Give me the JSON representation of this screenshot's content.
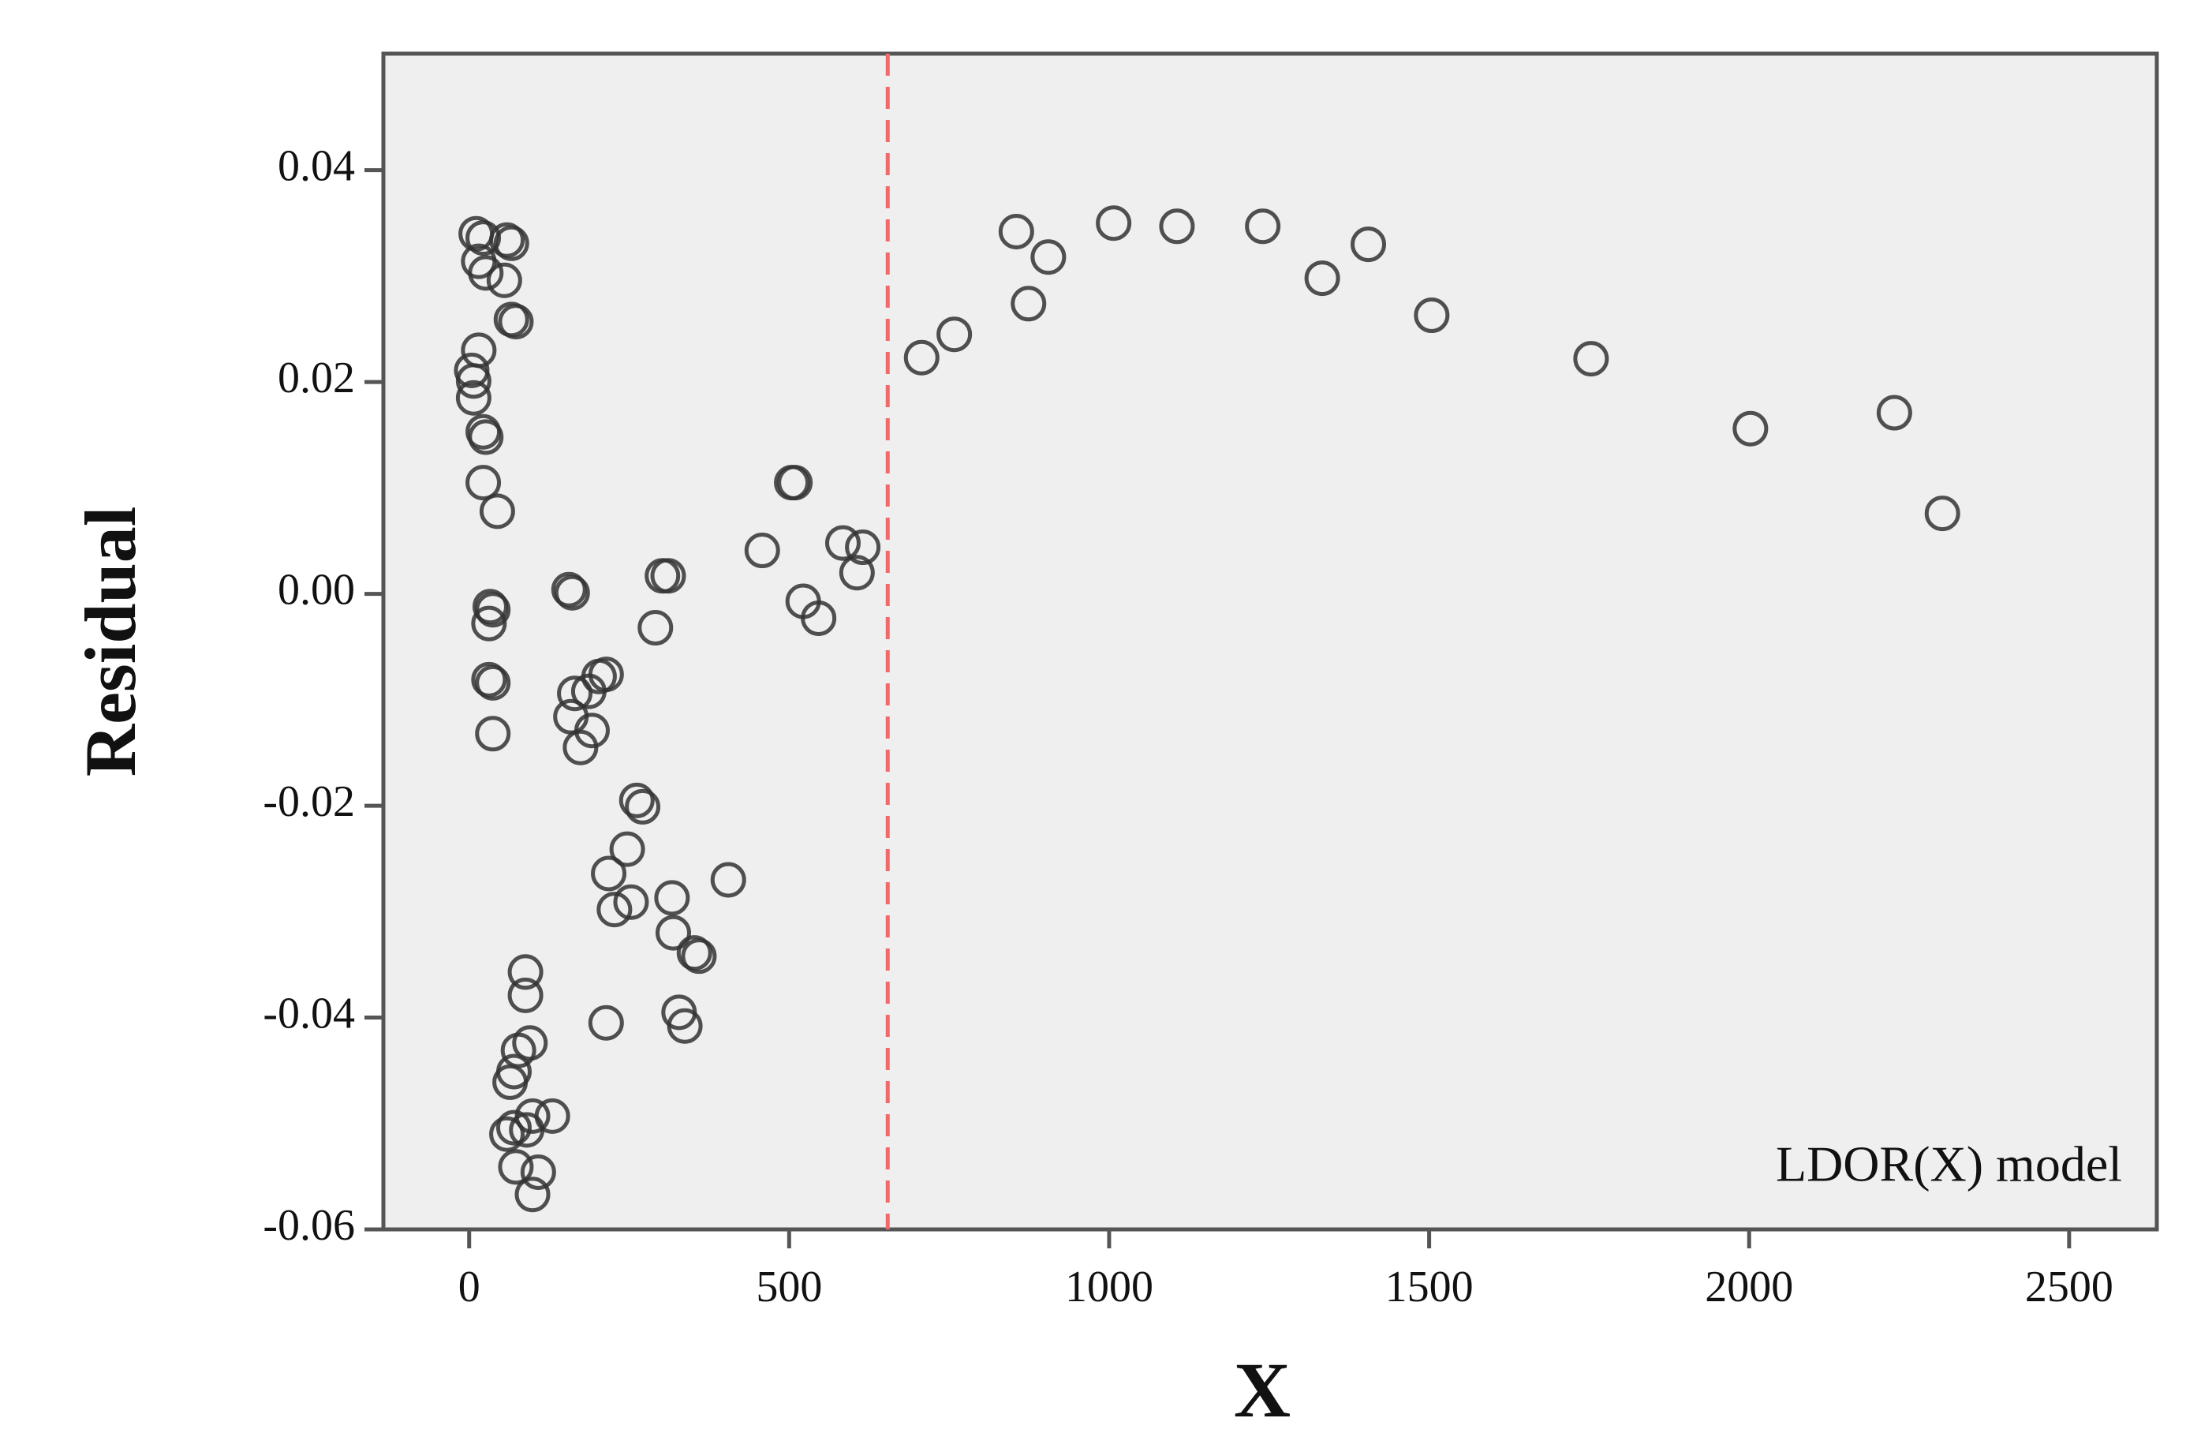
{
  "chart_data": {
    "type": "scatter",
    "xlabel": "X",
    "ylabel": "Residual",
    "annotation": "LDOR(X) model",
    "color": "#333333",
    "reference_line_x": 654,
    "reference_line_color": "#f06a6a",
    "xlim": [
      -134,
      2637
    ],
    "ylim": [
      -0.06,
      0.051
    ],
    "xticks": [
      0,
      500,
      1000,
      1500,
      2000,
      2500
    ],
    "yticks": [
      -0.06,
      -0.04,
      -0.02,
      {
        "value": 0,
        "label": "0.00"
      },
      0.02,
      0.04
    ],
    "x": [
      11,
      22,
      59,
      66,
      15,
      26,
      55,
      66,
      73,
      15,
      4,
      7,
      7,
      22,
      26,
      22,
      44,
      33,
      37,
      31,
      31,
      37,
      37,
      88,
      88,
      95,
      77,
      70,
      64,
      59,
      70,
      99,
      130,
      73,
      108,
      99,
      90,
      156,
      161,
      302,
      311,
      291,
      165,
      159,
      174,
      192,
      203,
      214,
      187,
      262,
      271,
      247,
      218,
      227,
      253,
      317,
      319,
      352,
      359,
      328,
      337,
      214,
      405,
      458,
      504,
      509,
      522,
      546,
      584,
      615,
      606,
      707,
      758,
      855,
      874,
      905,
      1007,
      1106,
      1240,
      1333,
      1405,
      1504,
      1753,
      2002,
      2227,
      2302
    ],
    "values": [
      0.034,
      0.0336,
      0.0334,
      0.0331,
      0.0314,
      0.0303,
      0.0296,
      0.0259,
      0.0257,
      0.023,
      0.0211,
      0.0201,
      0.0185,
      0.0153,
      0.0148,
      0.0105,
      0.0078,
      -0.0012,
      -0.0015,
      -0.0028,
      -0.0081,
      -0.0084,
      -0.0132,
      -0.0357,
      -0.0379,
      -0.0424,
      -0.0431,
      -0.0451,
      -0.0461,
      -0.051,
      -0.0504,
      -0.0493,
      -0.0493,
      -0.0541,
      -0.0546,
      -0.0567,
      -0.0506,
      0.0004,
      0.0001,
      0.0017,
      0.0017,
      -0.0032,
      -0.0094,
      -0.0116,
      -0.0145,
      -0.0129,
      -0.0078,
      -0.0076,
      -0.0092,
      -0.0195,
      -0.0201,
      -0.0241,
      -0.0264,
      -0.0298,
      -0.0291,
      -0.0287,
      -0.032,
      -0.0339,
      -0.0342,
      -0.0395,
      -0.0408,
      -0.0405,
      -0.027,
      0.0041,
      0.0105,
      0.0105,
      -0.0007,
      -0.0023,
      0.0048,
      0.0044,
      0.002,
      0.0223,
      0.0245,
      0.0342,
      0.0274,
      0.0318,
      0.035,
      0.0347,
      0.0347,
      0.0298,
      0.033,
      0.0263,
      0.0222,
      0.0156,
      0.0171,
      0.0076
    ]
  }
}
